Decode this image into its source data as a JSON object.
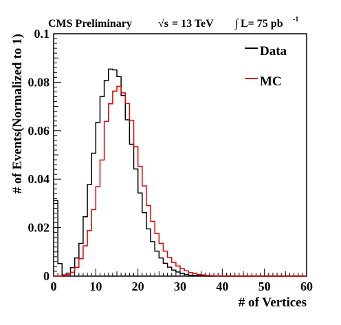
{
  "header": {
    "experiment": "CMS Preliminary",
    "energy_sqrt": "√s",
    "energy_rest": "= 13 TeV",
    "lumi_integral": "∫",
    "lumi_rest": "L= 75 pb",
    "lumi_exp": "-1"
  },
  "chart_data": {
    "type": "line",
    "xlabel": "# of Vertices",
    "ylabel": "# of Events(Normalized to 1)",
    "xlim": [
      0,
      60
    ],
    "ylim": [
      0,
      0.1
    ],
    "xticks": [
      "0",
      "10",
      "20",
      "30",
      "40",
      "50",
      "60"
    ],
    "yticks": [
      "0",
      "0.02",
      "0.04",
      "0.06",
      "0.08",
      "0.1"
    ],
    "bin_width": 1,
    "legend_position": "top-right",
    "series": [
      {
        "name": "Data",
        "color": "#000000",
        "values": [
          0.0312,
          0.0052,
          0.0005,
          0.0012,
          0.0035,
          0.0075,
          0.0135,
          0.0245,
          0.0378,
          0.0507,
          0.0634,
          0.0741,
          0.0807,
          0.0854,
          0.0851,
          0.0823,
          0.0745,
          0.0645,
          0.0544,
          0.0442,
          0.0343,
          0.0262,
          0.0195,
          0.0142,
          0.0103,
          0.0075,
          0.0053,
          0.0037,
          0.0025,
          0.0017,
          0.0011,
          0.0007,
          0.0004,
          0.0003,
          0.0002,
          0.0001,
          0.0001,
          5e-05,
          3e-05,
          2e-05,
          1e-05,
          1e-05,
          0,
          0,
          0,
          0,
          0,
          0,
          0,
          0,
          0,
          0,
          0,
          0,
          0,
          0,
          0,
          0,
          0,
          0
        ]
      },
      {
        "name": "MC",
        "color": "#e00000",
        "values": [
          0,
          0,
          0.0002,
          0.0006,
          0.0016,
          0.0036,
          0.0072,
          0.0125,
          0.0188,
          0.0274,
          0.0369,
          0.0479,
          0.0638,
          0.0711,
          0.0763,
          0.0783,
          0.0756,
          0.0712,
          0.0643,
          0.0534,
          0.0453,
          0.0372,
          0.0291,
          0.0226,
          0.0176,
          0.0135,
          0.0103,
          0.0077,
          0.0057,
          0.0042,
          0.0031,
          0.0022,
          0.0015,
          0.0011,
          0.0007,
          0.0005,
          0.0003,
          0.0002,
          0.0001,
          0.0001,
          5e-05,
          3e-05,
          2e-05,
          1e-05,
          1e-05,
          0,
          0,
          0,
          0,
          0,
          0,
          0,
          0,
          0,
          0,
          0,
          0,
          0,
          0,
          0
        ]
      }
    ]
  }
}
